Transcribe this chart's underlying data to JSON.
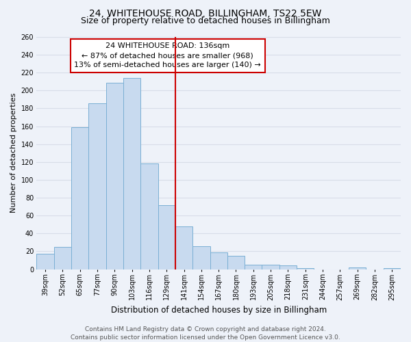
{
  "title": "24, WHITEHOUSE ROAD, BILLINGHAM, TS22 5EW",
  "subtitle": "Size of property relative to detached houses in Billingham",
  "xlabel": "Distribution of detached houses by size in Billingham",
  "ylabel": "Number of detached properties",
  "categories": [
    "39sqm",
    "52sqm",
    "65sqm",
    "77sqm",
    "90sqm",
    "103sqm",
    "116sqm",
    "129sqm",
    "141sqm",
    "154sqm",
    "167sqm",
    "180sqm",
    "193sqm",
    "205sqm",
    "218sqm",
    "231sqm",
    "244sqm",
    "257sqm",
    "269sqm",
    "282sqm",
    "295sqm"
  ],
  "values": [
    17,
    25,
    159,
    186,
    209,
    214,
    118,
    72,
    48,
    26,
    19,
    15,
    5,
    5,
    4,
    1,
    0,
    0,
    2,
    0,
    1
  ],
  "bar_color": "#c8daef",
  "bar_edge_color": "#7aafd4",
  "vline_color": "#cc0000",
  "vline_pos": 7.5,
  "annotation_title": "24 WHITEHOUSE ROAD: 136sqm",
  "annotation_line1": "← 87% of detached houses are smaller (968)",
  "annotation_line2": "13% of semi-detached houses are larger (140) →",
  "annotation_box_color": "#ffffff",
  "annotation_box_edge_color": "#cc0000",
  "ylim": [
    0,
    260
  ],
  "yticks": [
    0,
    20,
    40,
    60,
    80,
    100,
    120,
    140,
    160,
    180,
    200,
    220,
    240,
    260
  ],
  "footer_line1": "Contains HM Land Registry data © Crown copyright and database right 2024.",
  "footer_line2": "Contains public sector information licensed under the Open Government Licence v3.0.",
  "background_color": "#eef2f9",
  "grid_color": "#d8dde8",
  "title_fontsize": 10,
  "subtitle_fontsize": 9,
  "xlabel_fontsize": 8.5,
  "ylabel_fontsize": 8,
  "tick_fontsize": 7,
  "annotation_fontsize": 8,
  "footer_fontsize": 6.5
}
